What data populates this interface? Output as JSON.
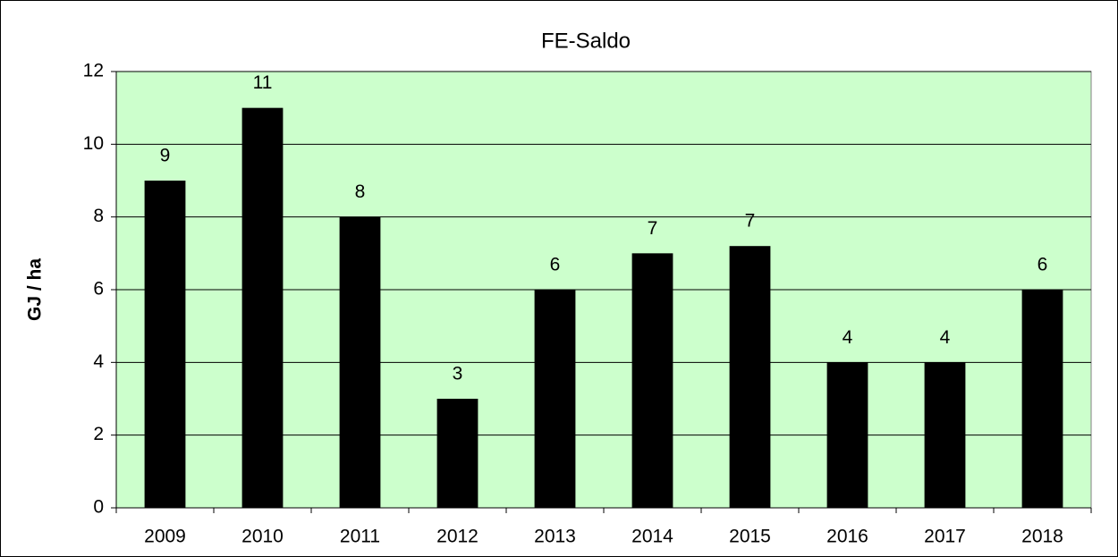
{
  "chart_data": {
    "type": "bar",
    "title": "FE-Saldo",
    "y_label": "GJ / ha",
    "categories": [
      "2009",
      "2010",
      "2011",
      "2012",
      "2013",
      "2014",
      "2015",
      "2016",
      "2017",
      "2018"
    ],
    "values": [
      9,
      11,
      8,
      3,
      6,
      7,
      7.2,
      4,
      4,
      6
    ],
    "value_labels": [
      "9",
      "11",
      "8",
      "3",
      "6",
      "7",
      "7",
      "4",
      "4",
      "6"
    ],
    "color": "#000000",
    "background": "#ccffcc",
    "ylim": [
      0,
      12
    ],
    "yticks": [
      0,
      2,
      4,
      6,
      8,
      10,
      12
    ],
    "grid": true
  }
}
